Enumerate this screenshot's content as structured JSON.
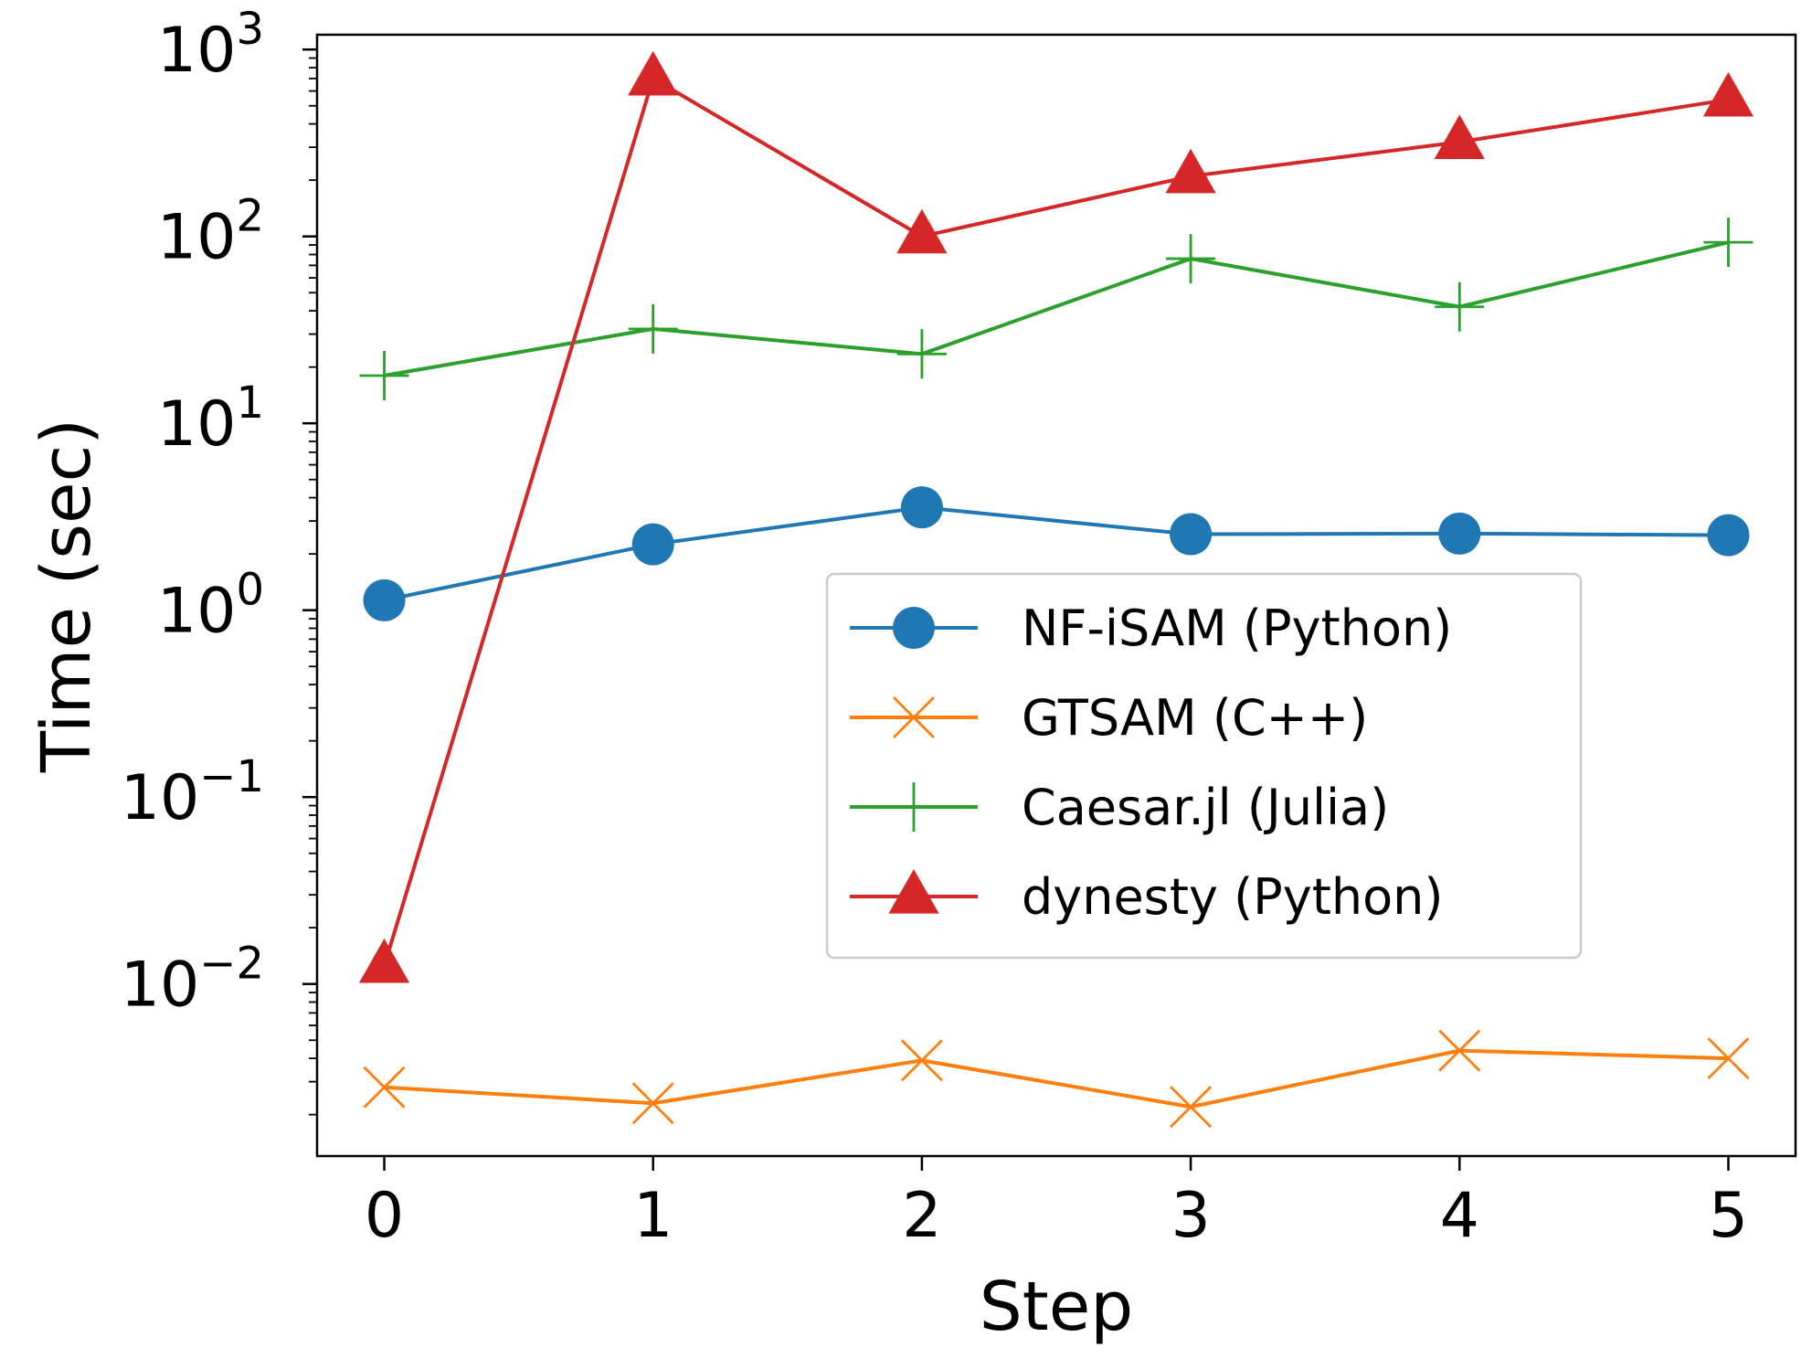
{
  "chart_data": {
    "type": "line",
    "xlabel": "Step",
    "ylabel": "Time (sec)",
    "yscale": "log",
    "x": [
      0,
      1,
      2,
      3,
      4,
      5
    ],
    "xlim": [
      -0.25,
      5.25
    ],
    "ylim": [
      0.0012,
      1200
    ],
    "x_ticks": [
      "0",
      "1",
      "2",
      "3",
      "4",
      "5"
    ],
    "y_ticks": [
      {
        "base": "10",
        "exp": "−2",
        "value": 0.01
      },
      {
        "base": "10",
        "exp": "−1",
        "value": 0.1
      },
      {
        "base": "10",
        "exp": "0",
        "value": 1
      },
      {
        "base": "10",
        "exp": "1",
        "value": 10
      },
      {
        "base": "10",
        "exp": "2",
        "value": 100
      },
      {
        "base": "10",
        "exp": "3",
        "value": 1000
      }
    ],
    "grid": false,
    "legend_position": "center-right",
    "series": [
      {
        "name": "NF-iSAM (Python)",
        "color": "#1f77b4",
        "marker": "circle",
        "values": [
          1.13,
          2.25,
          3.55,
          2.55,
          2.57,
          2.52
        ]
      },
      {
        "name": "GTSAM (C++)",
        "color": "#ff7f0e",
        "marker": "x",
        "values": [
          0.0028,
          0.0023,
          0.0039,
          0.0022,
          0.0044,
          0.004
        ]
      },
      {
        "name": "Caesar.jl (Julia)",
        "color": "#2ca02c",
        "marker": "plus",
        "values": [
          18,
          32,
          23.5,
          76,
          42,
          93
        ]
      },
      {
        "name": "dynesty (Python)",
        "color": "#d62728",
        "marker": "triangle",
        "values": [
          0.0125,
          700,
          100,
          210,
          320,
          540
        ]
      }
    ]
  }
}
